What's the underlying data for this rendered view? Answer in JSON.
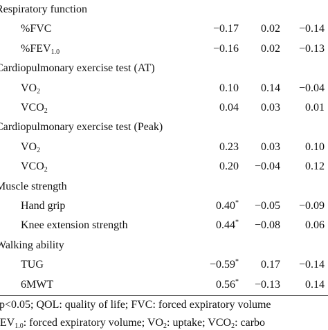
{
  "table": {
    "rows": [
      {
        "section": [
          {
            "text": "Respiratory function"
          }
        ]
      },
      {
        "label": [
          {
            "text": "%FVC"
          }
        ],
        "values": [
          "−0.17",
          "0.02",
          "−0.14"
        ]
      },
      {
        "label": [
          {
            "text": "%FEV"
          },
          {
            "sub": "1.0"
          }
        ],
        "values": [
          "−0.16",
          "0.02",
          "−0.13"
        ]
      },
      {
        "section": [
          {
            "text": "Cardiopulmonary exercise test (AT)"
          }
        ]
      },
      {
        "label": [
          {
            "text": "VO"
          },
          {
            "sub": "2"
          }
        ],
        "values": [
          "0.10",
          "0.14",
          "−0.04"
        ]
      },
      {
        "label": [
          {
            "text": "VCO"
          },
          {
            "sub": "2"
          }
        ],
        "values": [
          "0.04",
          "0.03",
          "0.01"
        ]
      },
      {
        "section": [
          {
            "text": "Cardiopulmonary exercise test (Peak)"
          }
        ]
      },
      {
        "label": [
          {
            "text": "VO"
          },
          {
            "sub": "2"
          }
        ],
        "values": [
          "0.23",
          "0.03",
          "0.10"
        ]
      },
      {
        "label": [
          {
            "text": "VCO"
          },
          {
            "sub": "2"
          }
        ],
        "values": [
          "0.20",
          "−0.04",
          "0.12"
        ]
      },
      {
        "section": [
          {
            "text": "Muscle strength"
          }
        ]
      },
      {
        "label": [
          {
            "text": "Hand grip"
          }
        ],
        "values": [
          {
            "text": "0.40",
            "sup": "*"
          },
          "−0.05",
          "−0.09"
        ]
      },
      {
        "label": [
          {
            "text": "Knee extension strength"
          }
        ],
        "values": [
          {
            "text": "0.44",
            "sup": "*"
          },
          "−0.08",
          "0.06"
        ]
      },
      {
        "section": [
          {
            "text": "Walking ability"
          }
        ]
      },
      {
        "label": [
          {
            "text": "TUG"
          }
        ],
        "values": [
          {
            "text": "−0.59",
            "sup": "*"
          },
          "0.17",
          "−0.14"
        ]
      },
      {
        "label": [
          {
            "text": "6MWT"
          }
        ],
        "values": [
          {
            "text": "0.56",
            "sup": "*"
          },
          "−0.13",
          "0.14"
        ]
      }
    ]
  },
  "footnote": {
    "lines": [
      [
        {
          "text": "p<0.05; QOL: quality of life; FVC: forced expiratory volume"
        }
      ],
      [
        {
          "text": "FEV"
        },
        {
          "sub": "1.0"
        },
        {
          "text": ": forced expiratory volume; VO"
        },
        {
          "sub": "2"
        },
        {
          "text": ": uptake; VCO"
        },
        {
          "sub": "2"
        },
        {
          "text": ": carbo"
        }
      ]
    ]
  }
}
